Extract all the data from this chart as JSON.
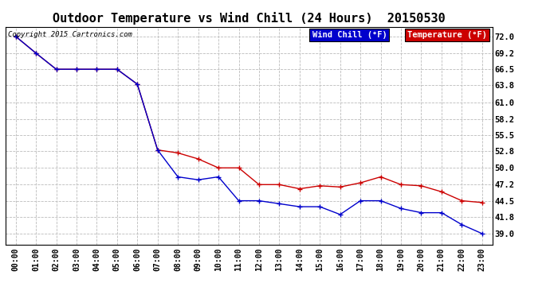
{
  "title": "Outdoor Temperature vs Wind Chill (24 Hours)  20150530",
  "copyright": "Copyright 2015 Cartronics.com",
  "x_labels": [
    "00:00",
    "01:00",
    "02:00",
    "03:00",
    "04:00",
    "05:00",
    "06:00",
    "07:00",
    "08:00",
    "09:00",
    "10:00",
    "11:00",
    "12:00",
    "13:00",
    "14:00",
    "15:00",
    "16:00",
    "17:00",
    "18:00",
    "19:00",
    "20:00",
    "21:00",
    "22:00",
    "23:00"
  ],
  "temperature": [
    72.0,
    69.2,
    66.5,
    66.5,
    66.5,
    66.5,
    64.0,
    53.0,
    52.5,
    51.5,
    50.0,
    50.0,
    47.2,
    47.2,
    46.5,
    47.0,
    46.8,
    47.5,
    48.5,
    47.2,
    47.0,
    46.0,
    44.5,
    44.2
  ],
  "wind_chill": [
    72.0,
    69.2,
    66.5,
    66.5,
    66.5,
    66.5,
    64.0,
    53.0,
    48.5,
    48.0,
    48.5,
    44.5,
    44.5,
    44.0,
    43.5,
    43.5,
    42.2,
    44.5,
    44.5,
    43.2,
    42.5,
    42.5,
    40.5,
    39.0
  ],
  "ylim_min": 37.2,
  "ylim_max": 73.6,
  "yticks": [
    39.0,
    41.8,
    44.5,
    47.2,
    50.0,
    52.8,
    55.5,
    58.2,
    61.0,
    63.8,
    66.5,
    69.2,
    72.0
  ],
  "temp_color": "#cc0000",
  "wind_color": "#0000cc",
  "marker_color": "#000000",
  "bg_color": "#ffffff",
  "grid_color": "#bbbbbb",
  "title_fontsize": 11,
  "legend_wind_label": "Wind Chill (°F)",
  "legend_temp_label": "Temperature (°F)",
  "legend_wind_bg": "#0000cc",
  "legend_temp_bg": "#cc0000"
}
